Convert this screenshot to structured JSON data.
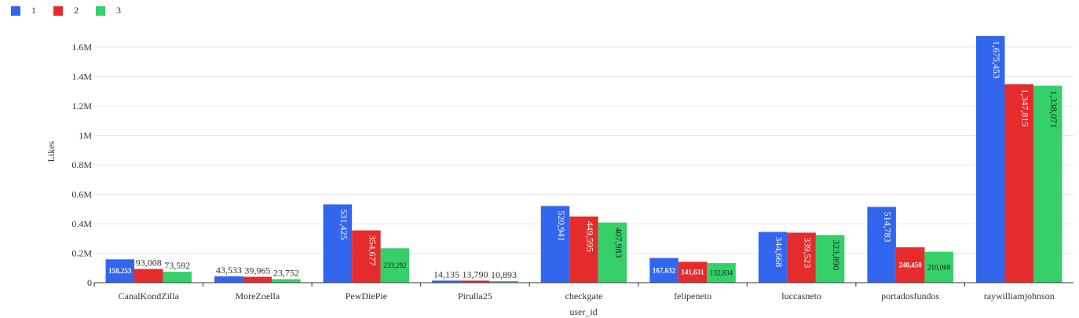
{
  "chart_data": {
    "type": "bar",
    "title": "",
    "xlabel": "user_id",
    "ylabel": "Likes",
    "categories": [
      "CanalKondZilla",
      "MoreZoella",
      "PewDiePie",
      "Pirulla25",
      "checkgate",
      "felipeneto",
      "luccasneto",
      "portadosfundos",
      "raywilliamjohnson"
    ],
    "series": [
      {
        "name": "1",
        "color": "#3366ee",
        "values": [
          158253,
          43533,
          531425,
          14135,
          520941,
          167632,
          344668,
          514783,
          1675453
        ],
        "labels": [
          "158,253",
          "43,533",
          "531,425",
          "14,135",
          "520,941",
          "167,632",
          "344,668",
          "514,783",
          "1,675,453"
        ]
      },
      {
        "name": "2",
        "color": "#e52b2b",
        "values": [
          93008,
          39965,
          354677,
          13790,
          449595,
          141631,
          339523,
          240450,
          1347815
        ],
        "labels": [
          "93,008",
          "39,965",
          "354,677",
          "13,790",
          "449,595",
          "141,631",
          "339,523",
          "240,450",
          "1,347,815"
        ]
      },
      {
        "name": "3",
        "color": "#35d06a",
        "values": [
          73592,
          23752,
          233292,
          10893,
          407983,
          132834,
          323890,
          210068,
          1338071
        ],
        "labels": [
          "73,592",
          "23,752",
          "233,292",
          "10,893",
          "407,983",
          "132,834",
          "323,890",
          "210,068",
          "1,338,071"
        ]
      }
    ],
    "yticks": [
      {
        "value": 0,
        "label": "0"
      },
      {
        "value": 200000,
        "label": "0.2M"
      },
      {
        "value": 400000,
        "label": "0.4M"
      },
      {
        "value": 600000,
        "label": "0.6M"
      },
      {
        "value": 800000,
        "label": "0.8M"
      },
      {
        "value": 1000000,
        "label": "1M"
      },
      {
        "value": 1200000,
        "label": "1.2M"
      },
      {
        "value": 1400000,
        "label": "1.4M"
      },
      {
        "value": 1600000,
        "label": "1.6M"
      }
    ],
    "ylim": [
      0,
      1600000
    ],
    "grid": true,
    "legend_position": "top-left"
  }
}
